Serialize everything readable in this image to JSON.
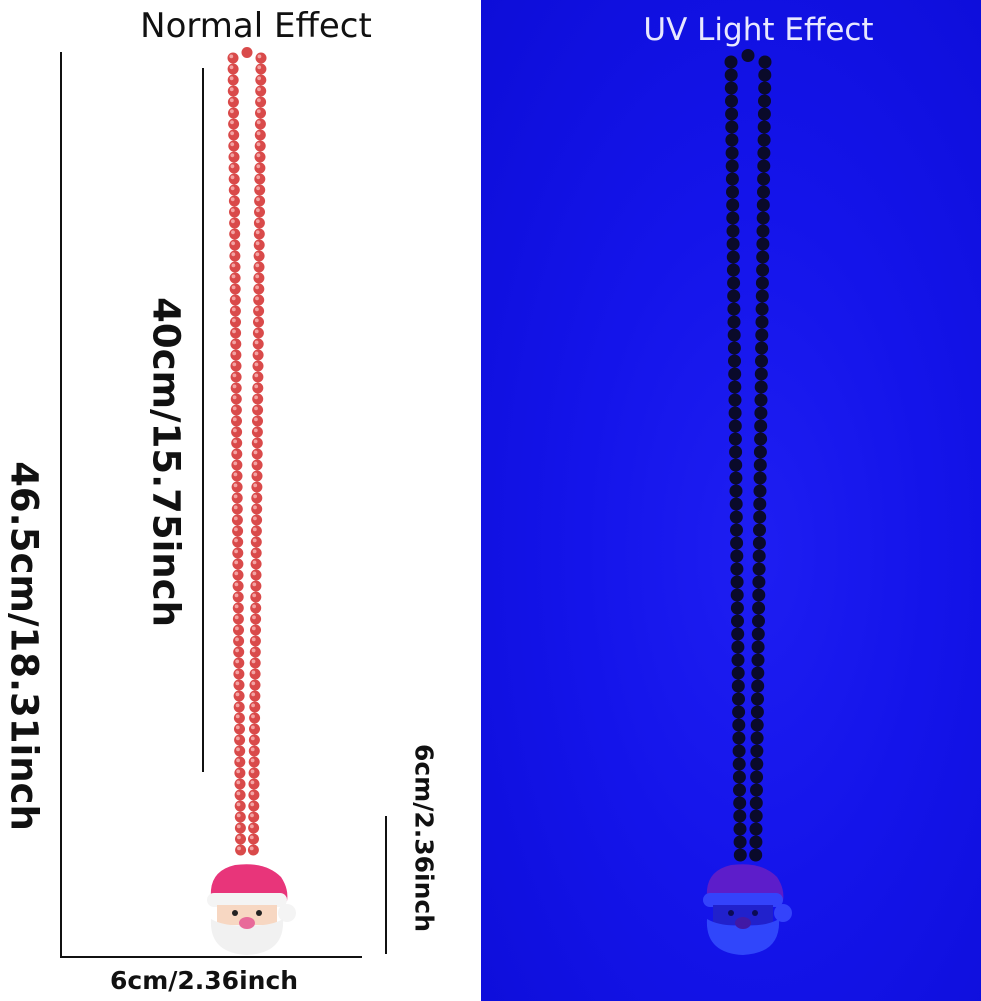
{
  "panels": {
    "left": {
      "title": "Normal Effect",
      "background": "#ffffff",
      "bead_color": "#d94a4a"
    },
    "right": {
      "title": "UV Light Effect",
      "background": "#1414ea",
      "bead_color": "#0a0a2a"
    }
  },
  "dimensions": {
    "total_length": "46.5cm/18.31inch",
    "chain_length": "40cm/15.75inch",
    "pendant_height": "6cm/2.36inch",
    "pendant_width": "6cm/2.36inch"
  },
  "icons": {
    "pendant_left": "santa-face-icon",
    "pendant_right": "santa-face-icon"
  }
}
